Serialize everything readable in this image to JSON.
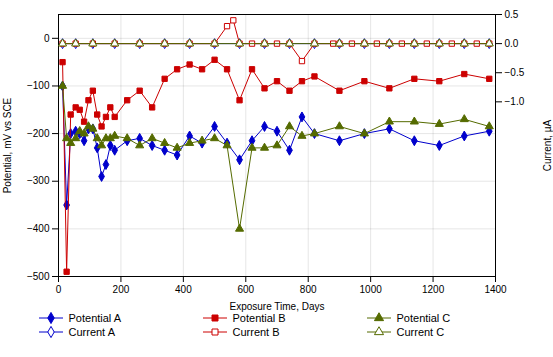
{
  "chart_data": {
    "type": "line",
    "xlabel": "Exposure Time, Days",
    "ylabel": "Potential, mV vs SCE",
    "y2label": "Current, µA",
    "xlim": [
      0,
      1400
    ],
    "xticks": [
      0,
      200,
      400,
      600,
      800,
      1000,
      1200,
      1400
    ],
    "ylim": [
      -500,
      50
    ],
    "yticks": [
      0,
      -100,
      -200,
      -300,
      -400,
      -500
    ],
    "y2lim": [
      -4,
      0.5
    ],
    "y2ticks": [
      0.5,
      {
        "value": 0,
        "label": "0.0"
      },
      -0.5,
      {
        "value": -1.0,
        "label": "−1.0"
      }
    ],
    "grid": true,
    "legend": "bottom",
    "series": [
      {
        "name": "Potential A",
        "color": "#0000CC",
        "marker": "diamond",
        "x": [
          13,
          26,
          39,
          55,
          68,
          82,
          96,
          110,
          124,
          138,
          152,
          166,
          180,
          220,
          260,
          300,
          340,
          380,
          420,
          460,
          500,
          540,
          580,
          620,
          660,
          700,
          740,
          780,
          820,
          900,
          980,
          1060,
          1140,
          1220,
          1300,
          1380
        ],
        "values": [
          -100,
          -350,
          -200,
          -195,
          -200,
          -215,
          -190,
          -190,
          -230,
          -290,
          -265,
          -225,
          -235,
          -215,
          -210,
          -225,
          -235,
          -245,
          -205,
          -220,
          -185,
          -220,
          -255,
          -215,
          -185,
          -195,
          -235,
          -165,
          -200,
          -215,
          -200,
          -190,
          -215,
          -225,
          -205,
          -195
        ]
      },
      {
        "name": "Potential B",
        "color": "#CC0000",
        "marker": "square",
        "x": [
          13,
          26,
          39,
          55,
          68,
          82,
          96,
          110,
          124,
          138,
          152,
          166,
          180,
          220,
          260,
          300,
          340,
          380,
          420,
          460,
          500,
          540,
          580,
          620,
          660,
          700,
          740,
          780,
          820,
          900,
          980,
          1060,
          1140,
          1220,
          1300,
          1380
        ],
        "values": [
          -50,
          -490,
          -160,
          -145,
          -150,
          -175,
          -130,
          -110,
          -160,
          -185,
          -165,
          -145,
          -165,
          -130,
          -110,
          -145,
          -85,
          -65,
          -55,
          -65,
          -45,
          -65,
          -130,
          -65,
          -105,
          -90,
          -110,
          -90,
          -80,
          -110,
          -90,
          -105,
          -85,
          -90,
          -75,
          -85
        ]
      },
      {
        "name": "Potential C",
        "color": "#556B00",
        "marker": "triangle",
        "x": [
          13,
          26,
          39,
          55,
          68,
          82,
          96,
          110,
          124,
          138,
          152,
          166,
          180,
          220,
          260,
          300,
          340,
          380,
          420,
          460,
          500,
          540,
          580,
          620,
          660,
          700,
          740,
          780,
          820,
          900,
          980,
          1060,
          1140,
          1220,
          1300,
          1380
        ],
        "values": [
          -100,
          -210,
          -220,
          -210,
          -195,
          -200,
          -185,
          -190,
          -210,
          -225,
          -210,
          -210,
          -205,
          -210,
          -225,
          -210,
          -220,
          -230,
          -220,
          -215,
          -210,
          -225,
          -400,
          -230,
          -230,
          -225,
          -185,
          -205,
          -200,
          -185,
          -200,
          -175,
          -175,
          -180,
          -170,
          -185
        ]
      },
      {
        "name": "Current A",
        "color": "#0000CC",
        "marker": "diamond-open",
        "axis": "y2",
        "x": [
          13,
          55,
          110,
          180,
          260,
          340,
          420,
          500,
          580,
          660,
          740,
          820,
          900,
          980,
          1060,
          1140,
          1220,
          1300,
          1380
        ],
        "values": [
          0.0,
          0.0,
          0.0,
          0.0,
          0.0,
          0.0,
          0.0,
          0.0,
          0.0,
          0.0,
          0.0,
          0.0,
          0.0,
          0.0,
          0.0,
          0.0,
          0.0,
          0.0,
          0.0
        ]
      },
      {
        "name": "Current B",
        "color": "#CC0000",
        "marker": "square-open",
        "axis": "y2",
        "x": [
          13,
          55,
          110,
          180,
          260,
          340,
          420,
          500,
          540,
          560,
          580,
          620,
          660,
          700,
          740,
          780,
          820,
          880,
          900,
          940,
          980,
          1020,
          1060,
          1100,
          1140,
          1180,
          1220,
          1260,
          1300,
          1340,
          1380
        ],
        "values": [
          0.0,
          0.0,
          0.0,
          0.0,
          0.0,
          0.0,
          0.0,
          0.0,
          0.3,
          0.4,
          0.0,
          0.0,
          0.0,
          0.0,
          0.0,
          -0.3,
          0.0,
          0.0,
          0.0,
          0.0,
          0.0,
          0.0,
          0.0,
          0.0,
          0.0,
          0.0,
          0.0,
          0.0,
          0.0,
          0.0,
          0.0
        ]
      },
      {
        "name": "Current C",
        "color": "#556B00",
        "marker": "triangle-open",
        "axis": "y2",
        "x": [
          13,
          55,
          110,
          180,
          260,
          340,
          420,
          500,
          580,
          660,
          740,
          820,
          900,
          980,
          1060,
          1140,
          1220,
          1300,
          1380
        ],
        "values": [
          0.0,
          0.0,
          0.0,
          0.0,
          0.0,
          0.0,
          0.0,
          0.0,
          0.0,
          0.0,
          0.0,
          0.0,
          0.0,
          0.0,
          0.0,
          0.0,
          0.0,
          0.0,
          0.0
        ]
      }
    ]
  }
}
